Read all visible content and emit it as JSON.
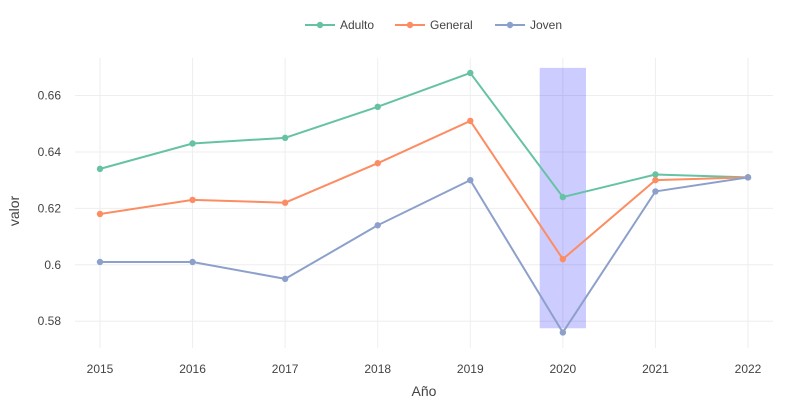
{
  "chart_data": {
    "type": "line",
    "x": [
      2015,
      2016,
      2017,
      2018,
      2019,
      2020,
      2021,
      2022
    ],
    "series": [
      {
        "name": "Adulto",
        "color": "#66c2a5",
        "values": [
          0.634,
          0.643,
          0.645,
          0.656,
          0.668,
          0.624,
          0.632,
          0.631
        ]
      },
      {
        "name": "General",
        "color": "#fc8d62",
        "values": [
          0.618,
          0.623,
          0.622,
          0.636,
          0.651,
          0.602,
          0.63,
          0.631
        ]
      },
      {
        "name": "Joven",
        "color": "#8da0cb",
        "values": [
          0.601,
          0.601,
          0.595,
          0.614,
          0.63,
          0.576,
          0.626,
          0.631
        ]
      }
    ],
    "xlabel": "Año",
    "ylabel": "valor",
    "xticks": [
      "2015",
      "2016",
      "2017",
      "2018",
      "2019",
      "2020",
      "2021",
      "2022"
    ],
    "yticks": [
      "0.58",
      "0.6",
      "0.62",
      "0.64",
      "0.66"
    ],
    "ytick_values": [
      0.58,
      0.6,
      0.62,
      0.64,
      0.66
    ],
    "xlim": [
      2014.73,
      2022.27
    ],
    "ylim": [
      0.5705,
      0.6733
    ],
    "highlight": {
      "x_range": [
        2019.75,
        2020.25
      ],
      "y_range": [
        0.5775,
        0.6698
      ],
      "color": "#0000ff",
      "opacity": 0.2
    },
    "legend": "top-center",
    "grid": true
  }
}
